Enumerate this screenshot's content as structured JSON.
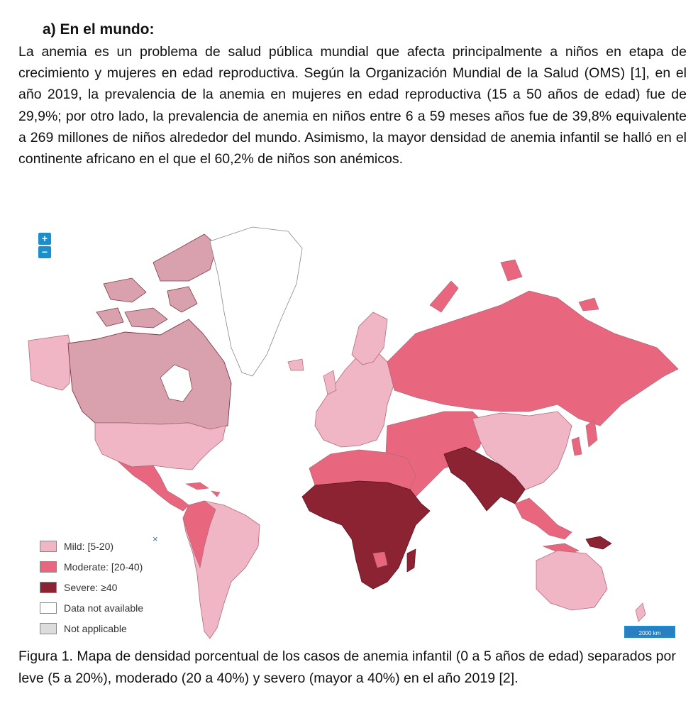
{
  "section": {
    "heading": "a)  En el mundo:",
    "paragraph": "La anemia es un problema de salud pública mundial que afecta principalmente a niños en etapa de crecimiento y mujeres en edad reproductiva. Según la Organización Mundial de la Salud (OMS) [1], en el año 2019, la prevalencia de la anemia en mujeres en edad reproductiva (15 a 50 años de edad) fue de 29,9%; por otro lado, la prevalencia de anemia en niños entre 6 a 59 meses años fue de 39,8% equivalente a 269 millones de niños alrededor del mundo. Asimismo, la mayor densidad de anemia infantil se halló en el continente africano en el que el 60,2% de niños son anémicos."
  },
  "map": {
    "zoom_in_label": "+",
    "zoom_out_label": "−",
    "legend_close": "×",
    "scale_label": "2000 km",
    "legend": [
      {
        "label": "Mild: [5-20)",
        "color": "#f0b6c6"
      },
      {
        "label": "Moderate: [20-40)",
        "color": "#e8677f"
      },
      {
        "label": "Severe: ≥40",
        "color": "#8c2332"
      },
      {
        "label": "Data not available",
        "color": "#ffffff"
      },
      {
        "label": "Not applicable",
        "color": "#dcdcdc"
      }
    ],
    "colors": {
      "mild": "#f0b6c6",
      "moderate": "#e8677f",
      "severe": "#8c2332",
      "canada": "#d9a0ae",
      "no_data": "#ffffff",
      "border": "#b06a78"
    }
  },
  "caption": "Figura 1. Mapa de densidad porcentual de los casos de anemia infantil (0 a 5 años de edad) separados por leve (5 a 20%), moderado (20 a 40%) y severo (mayor a 40%) en el año 2019 [2]."
}
